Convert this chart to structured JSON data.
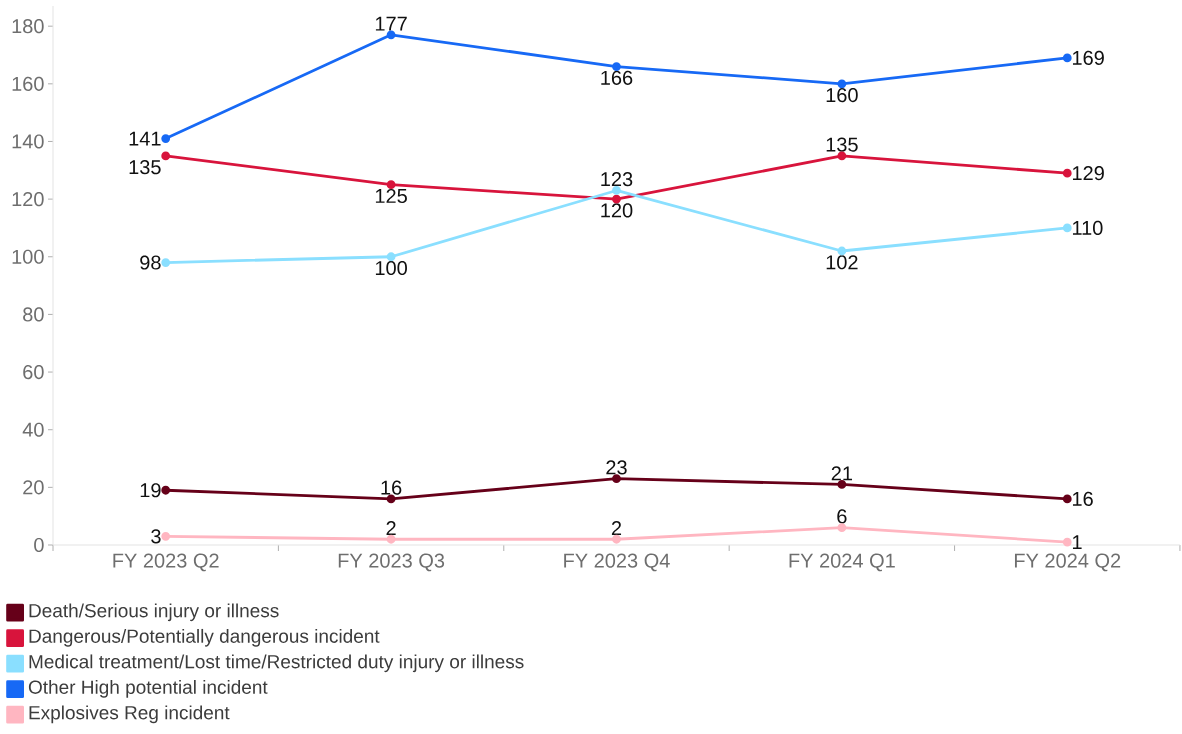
{
  "chart_data": {
    "type": "line",
    "categories": [
      "FY 2023 Q2",
      "FY 2023 Q3",
      "FY 2023 Q4",
      "FY 2024 Q1",
      "FY 2024 Q2"
    ],
    "series": [
      {
        "name": "Death/Serious injury or illness",
        "color": "#660019",
        "values": [
          19,
          16,
          23,
          21,
          16
        ]
      },
      {
        "name": "Dangerous/Potentially dangerous incident",
        "color": "#d8143c",
        "values": [
          135,
          125,
          120,
          135,
          129
        ]
      },
      {
        "name": "Medical treatment/Lost time/Restricted duty injury or illness",
        "color": "#8adfff",
        "values": [
          98,
          100,
          123,
          102,
          110
        ]
      },
      {
        "name": "Other High potential incident",
        "color": "#1769f5",
        "values": [
          141,
          177,
          166,
          160,
          169
        ]
      },
      {
        "name": "Explosives Reg incident",
        "color": "#ffb6c1",
        "values": [
          3,
          2,
          2,
          6,
          1
        ]
      }
    ],
    "ylim": [
      0,
      187
    ],
    "yticks": [
      0,
      20,
      40,
      60,
      80,
      100,
      120,
      140,
      160,
      180
    ],
    "data_labels": true,
    "legend": "bottom",
    "marker": "circle",
    "line_style": "solid"
  }
}
